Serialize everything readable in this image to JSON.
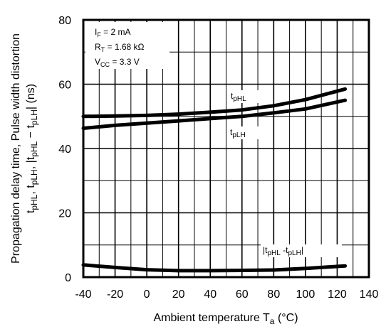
{
  "chart_data": {
    "type": "line",
    "xlabel": "Ambient temperature",
    "xlabel_symbol": "T",
    "xlabel_symbol_sub": "a",
    "xlabel_unit": "(°C)",
    "ylabel_line1": "Propagation delay time, Pulse width distortion",
    "ylabel_line2": "t",
    "ylabel_line2_parts": {
      "a": "t",
      "a_sub": "pHL",
      "b": ", t",
      "b_sub": "pLH",
      "c": ", |t",
      "c_sub": "pHL",
      "d": " − t",
      "d_sub": "pLH",
      "e": "|",
      "unit": "(ns)"
    },
    "xlim": [
      -40,
      140
    ],
    "ylim": [
      0,
      80
    ],
    "x_ticks": [
      "-40",
      "-20",
      "0",
      "20",
      "40",
      "60",
      "80",
      "100",
      "120",
      "140"
    ],
    "y_ticks": [
      "0",
      "20",
      "40",
      "60",
      "80"
    ],
    "grid": true,
    "conditions": {
      "if": {
        "main": "I",
        "sub": "F",
        "rest": " = 2 mA"
      },
      "rt": {
        "main": "R",
        "sub": "T",
        "rest": " = 1.68 kΩ"
      },
      "vcc": {
        "main": "V",
        "sub": "CC",
        "rest": " = 3.3 V"
      }
    },
    "series": [
      {
        "label_main": "t",
        "label_sub": "pHL",
        "x": [
          -40,
          -20,
          0,
          20,
          40,
          60,
          80,
          100,
          125
        ],
        "y": [
          50.0,
          50.1,
          50.3,
          50.7,
          51.3,
          52.0,
          53.3,
          55.2,
          58.5
        ]
      },
      {
        "label_main": "t",
        "label_sub": "pLH",
        "x": [
          -40,
          -20,
          0,
          20,
          40,
          60,
          80,
          100,
          125
        ],
        "y": [
          46.3,
          47.2,
          47.9,
          48.6,
          49.3,
          50.0,
          51.1,
          52.3,
          55.0
        ]
      },
      {
        "label_main": "|t",
        "label_sub": "pHL",
        "label_mid": " -t",
        "label_sub2": "pLH",
        "label_end": "|",
        "x": [
          -40,
          -20,
          0,
          20,
          40,
          60,
          80,
          100,
          125
        ],
        "y": [
          3.8,
          3.0,
          2.3,
          2.0,
          2.0,
          2.1,
          2.2,
          2.7,
          3.5
        ]
      }
    ]
  }
}
